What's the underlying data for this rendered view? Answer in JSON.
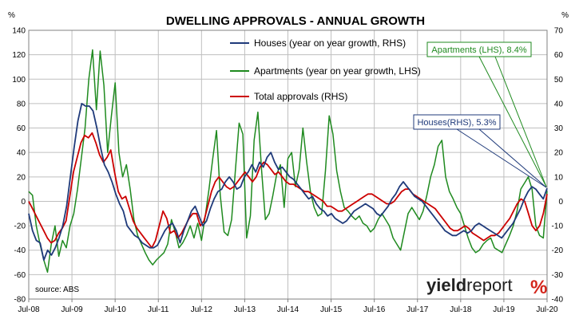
{
  "chart_data": {
    "type": "line",
    "title": "DWELLING APPROVALS - ANNUAL GROWTH",
    "y_left_unit": "%",
    "y_right_unit": "%",
    "y_left": {
      "min": -80,
      "max": 140,
      "ticks": [
        140,
        120,
        100,
        80,
        60,
        40,
        20,
        0,
        -20,
        -40,
        -60,
        -80
      ]
    },
    "y_right": {
      "min": -40,
      "max": 70,
      "ticks": [
        70,
        60,
        50,
        40,
        30,
        20,
        10,
        0,
        -10,
        -20,
        -30,
        -40
      ]
    },
    "x_ticks": [
      "Jul-08",
      "Jul-09",
      "Jul-10",
      "Jul-11",
      "Jul-12",
      "Jul-13",
      "Jul-14",
      "Jul-15",
      "Jul-16",
      "Jul-17",
      "Jul-18",
      "Jul-19",
      "Jul-20"
    ],
    "x_start": "Jul-08",
    "x_end": "Jul-20",
    "grid": true,
    "legend_position": "top-center",
    "series": [
      {
        "name": "Houses (year on year growth, RHS)",
        "axis": "right",
        "color": "#1f3a7a",
        "values": [
          -5,
          -12,
          -16,
          -17,
          -24,
          -20,
          -22,
          -19,
          -15,
          -10,
          -2,
          10,
          22,
          33,
          40,
          39,
          39,
          37,
          30,
          22,
          15,
          12,
          8,
          3,
          -1,
          -4,
          -10,
          -12,
          -14,
          -15,
          -17,
          -18,
          -19,
          -19,
          -18,
          -15,
          -12,
          -10,
          -9,
          -12,
          -17,
          -12,
          -8,
          -4,
          -2,
          -6,
          -10,
          -8,
          -3,
          1,
          4,
          5,
          8,
          10,
          8,
          5,
          6,
          10,
          12,
          15,
          12,
          16,
          14,
          18,
          20,
          16,
          13,
          14,
          12,
          10,
          9,
          7,
          5,
          3,
          1,
          2,
          -1,
          -3,
          -4,
          -6,
          -5,
          -7,
          -8,
          -9,
          -8,
          -6,
          -4,
          -3,
          -2,
          -1,
          -2,
          -3,
          -5,
          -6,
          -4,
          -2,
          1,
          3,
          6,
          8,
          6,
          4,
          2,
          1,
          0,
          -2,
          -4,
          -6,
          -8,
          -10,
          -12,
          -13,
          -14,
          -14,
          -13,
          -12,
          -13,
          -12,
          -10,
          -9,
          -10,
          -11,
          -12,
          -13,
          -14,
          -15,
          -13,
          -11,
          -9,
          -6,
          -3,
          1,
          4,
          6,
          5,
          3,
          1,
          5.3
        ]
      },
      {
        "name": "Apartments (year on year growth, LHS)",
        "axis": "left",
        "color": "#1f8a1f",
        "values": [
          8,
          5,
          -20,
          -35,
          -48,
          -58,
          -35,
          -20,
          -45,
          -32,
          -38,
          -20,
          -10,
          10,
          35,
          60,
          100,
          124,
          75,
          123,
          95,
          40,
          70,
          97,
          40,
          20,
          30,
          10,
          -15,
          -28,
          -35,
          -42,
          -48,
          -52,
          -48,
          -45,
          -42,
          -35,
          -15,
          -25,
          -38,
          -34,
          -28,
          -20,
          -30,
          -18,
          -32,
          -12,
          10,
          35,
          58,
          5,
          -25,
          -28,
          -15,
          25,
          64,
          55,
          -30,
          -12,
          50,
          73,
          25,
          -15,
          -10,
          5,
          22,
          30,
          -5,
          35,
          40,
          12,
          26,
          60,
          32,
          8,
          -5,
          -12,
          -10,
          25,
          70,
          55,
          25,
          8,
          -5,
          -8,
          -12,
          -15,
          -12,
          -18,
          -20,
          -25,
          -22,
          -15,
          -10,
          -15,
          -20,
          -30,
          -35,
          -40,
          -25,
          -10,
          -5,
          -10,
          -15,
          -8,
          5,
          20,
          30,
          45,
          50,
          20,
          8,
          2,
          -5,
          -10,
          -20,
          -30,
          -38,
          -42,
          -40,
          -35,
          -32,
          -30,
          -38,
          -40,
          -42,
          -35,
          -28,
          -20,
          -8,
          10,
          15,
          20,
          10,
          -20,
          -28,
          -30,
          8.4
        ]
      },
      {
        "name": "Total approvals (RHS)",
        "axis": "right",
        "color": "#cc0000",
        "values": [
          0,
          -3,
          -6,
          -9,
          -12,
          -15,
          -17,
          -16,
          -13,
          -11,
          -8,
          2,
          12,
          18,
          24,
          27,
          26,
          28,
          24,
          19,
          16,
          18,
          21,
          12,
          4,
          1,
          2,
          -3,
          -8,
          -11,
          -13,
          -15,
          -17,
          -19,
          -16,
          -10,
          -4,
          -7,
          -13,
          -12,
          -15,
          -13,
          -10,
          -7,
          -5,
          -5,
          -10,
          -8,
          -2,
          4,
          8,
          10,
          8,
          6,
          5,
          6,
          8,
          10,
          12,
          10,
          8,
          10,
          14,
          16,
          15,
          13,
          11,
          12,
          10,
          8,
          7,
          7,
          6,
          5,
          4,
          4,
          3,
          2,
          1,
          0,
          -2,
          -2,
          -3,
          -4,
          -4,
          -3,
          -2,
          -1,
          0,
          1,
          2,
          3,
          3,
          2,
          1,
          0,
          -1,
          -1,
          0,
          2,
          4,
          5,
          5,
          3,
          2,
          1,
          0,
          -1,
          -2,
          -3,
          -5,
          -7,
          -9,
          -11,
          -12,
          -12,
          -11,
          -10,
          -11,
          -13,
          -14,
          -15,
          -16,
          -15,
          -14,
          -14,
          -13,
          -11,
          -9,
          -7,
          -4,
          -1,
          1,
          0,
          -5,
          -10,
          -12,
          -10,
          -5,
          3
        ]
      }
    ],
    "annotations": [
      {
        "text": "Apartments (LHS), 8.4%",
        "color": "#1f8a1f"
      },
      {
        "text": "Houses(RHS), 5.3%",
        "color": "#1f3a7a"
      }
    ],
    "source_note": "source: ABS"
  },
  "brand": {
    "part1": "yield",
    "part2": "report",
    "symbol": "%"
  }
}
